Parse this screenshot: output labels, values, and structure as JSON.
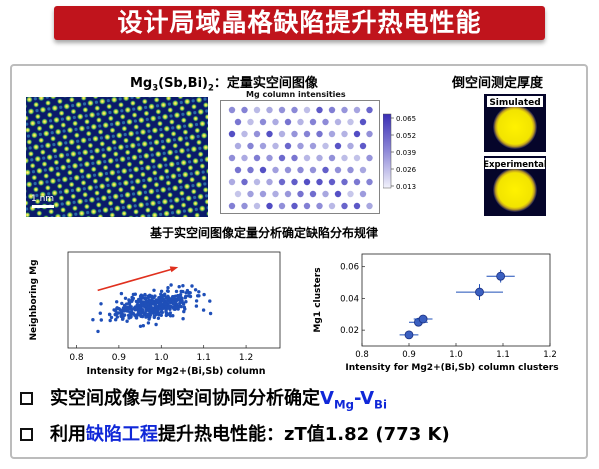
{
  "title": "设计局域晶格缺陷提升热电性能",
  "top_panel": {
    "formula_prefix": "Mg",
    "formula_sub1": "3",
    "formula_mid": "(Sb,Bi)",
    "formula_sub2": "2",
    "formula_suffix": "：定量实空间图像",
    "map_title": "Mg column intensities",
    "colorbar_ticks": [
      "0.065",
      "0.052",
      "0.039",
      "0.026",
      "0.013"
    ],
    "scale_bar": "1 nm",
    "reciprocal_title": "倒空间测定厚度",
    "simulated_label": "Simulated",
    "experimental_label": "Experimental"
  },
  "middle_title": "基于实空间图像定量分析确定缺陷分布规律",
  "chart_data": [
    {
      "type": "scatter",
      "xlabel": "Intensity for Mg2+(Bi,Sb) column",
      "ylabel": "Neighboring Mg",
      "x_ticks": [
        "0.8",
        "0.9",
        "1.0",
        "1.1",
        "1.2"
      ],
      "xlim": [
        0.78,
        1.28
      ],
      "ylim": [
        0.005,
        0.075
      ],
      "cluster": {
        "x_center": 0.98,
        "x_spread": 0.09,
        "y_center": 0.036,
        "y_spread": 0.009,
        "count": 420
      },
      "trend_arrow": {
        "from": [
          0.85,
          0.047
        ],
        "to": [
          1.04,
          0.064
        ],
        "color": "#e0301e"
      }
    },
    {
      "type": "scatter",
      "xlabel": "Intensity for Mg2+(Bi,Sb) column clusters",
      "ylabel": "Mg1 clusters",
      "x_ticks": [
        "0.8",
        "0.9",
        "1.0",
        "1.1",
        "1.2"
      ],
      "y_ticks": [
        "0.02",
        "0.04",
        "0.06"
      ],
      "xlim": [
        0.8,
        1.2
      ],
      "ylim": [
        0.01,
        0.068
      ],
      "points": [
        {
          "x": 0.9,
          "y": 0.017,
          "xerr": 0.02,
          "yerr": 0.002
        },
        {
          "x": 0.92,
          "y": 0.025,
          "xerr": 0.02,
          "yerr": 0.002
        },
        {
          "x": 0.93,
          "y": 0.027,
          "xerr": 0.02,
          "yerr": 0.002
        },
        {
          "x": 1.05,
          "y": 0.044,
          "xerr": 0.05,
          "yerr": 0.005
        },
        {
          "x": 1.095,
          "y": 0.054,
          "xerr": 0.03,
          "yerr": 0.004
        }
      ]
    }
  ],
  "bullets": {
    "b1_text": "实空间成像与倒空间协同分析确定",
    "b1_v1": "V",
    "b1_sub1": "Mg",
    "b1_dash": "-",
    "b1_v2": "V",
    "b1_sub2": "Bi",
    "b2_prefix": "利用",
    "b2_highlight": "缺陷工程",
    "b2_suffix": "提升热电性能：zT值1.82 (773 K)"
  },
  "colors": {
    "title_red": "#c0141c",
    "highlight_blue": "#1028d8",
    "point_blue": "#1f4fb8"
  }
}
